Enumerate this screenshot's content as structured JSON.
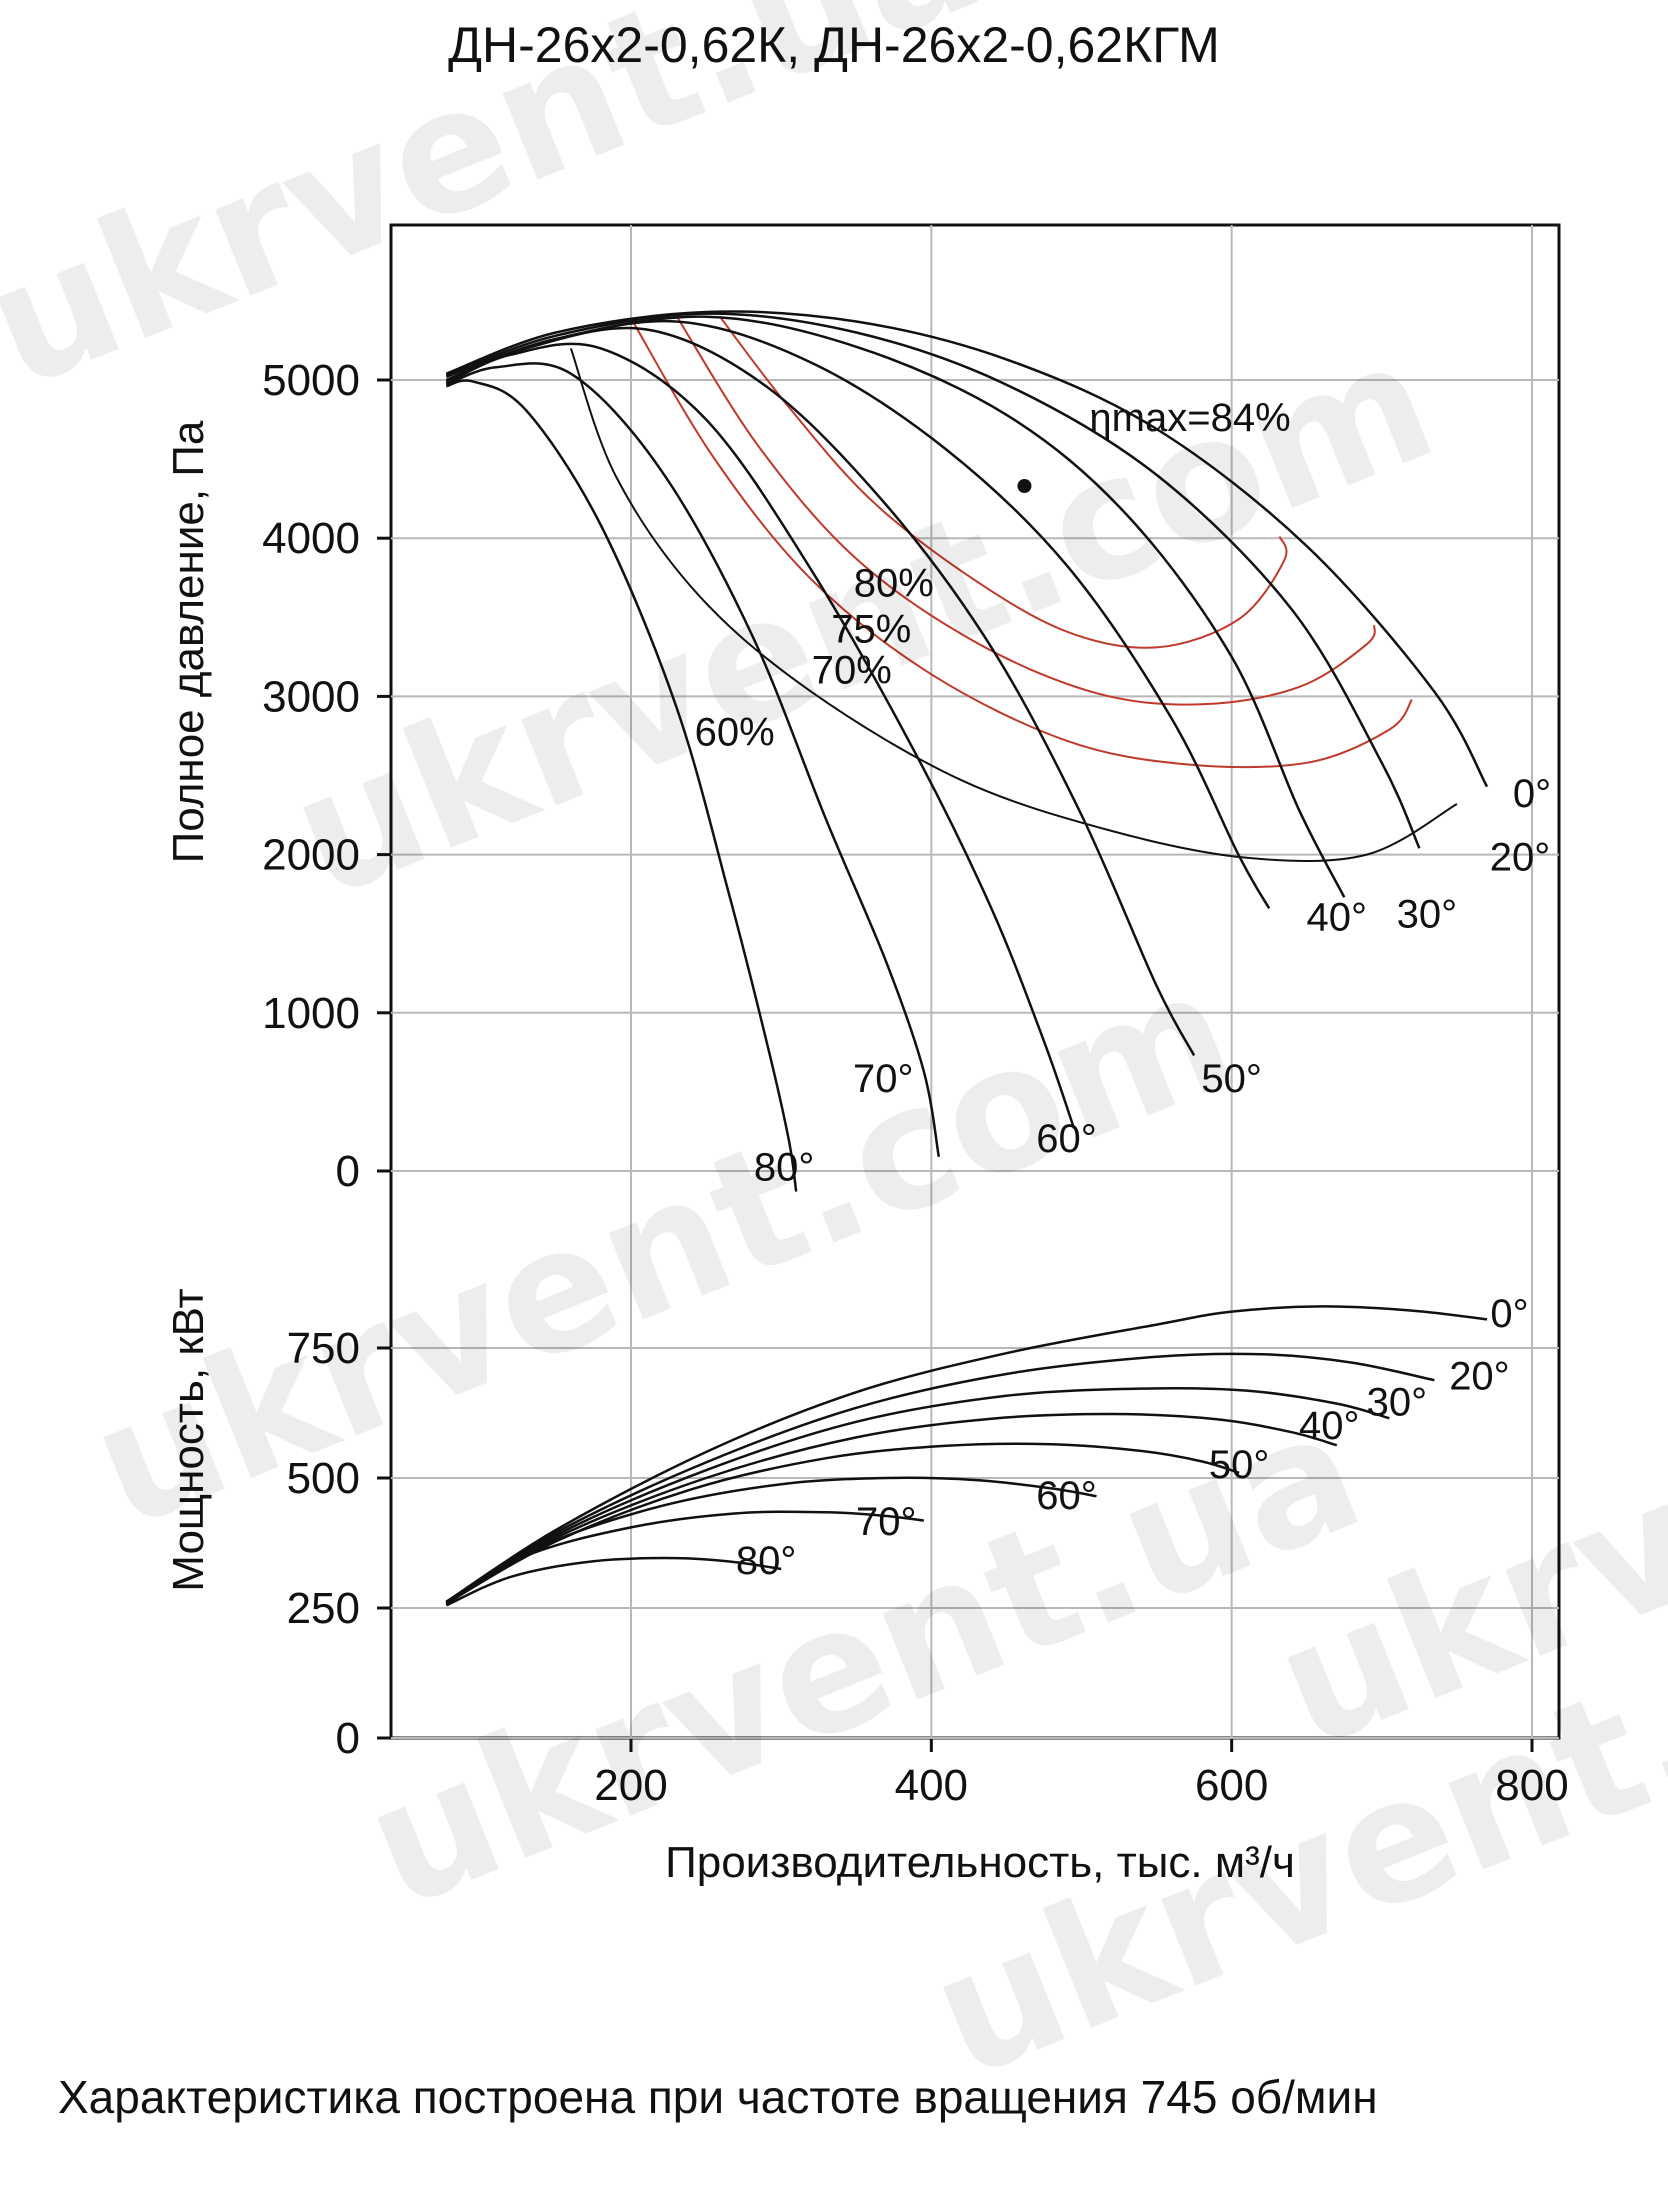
{
  "title": "ДН-26х2-0,62К, ДН-26х2-0,62КГМ",
  "caption": "Характеристика построена при частоте вращения 745 об/мин",
  "watermarks": [
    "ukrvent.ua",
    "ukrvent.com",
    "ukrvent.com",
    "ukrvent.ua",
    "ukrvent.com",
    "ukrvent.ua"
  ],
  "colors": {
    "curve": "#111111",
    "efficiency": "#c0392b",
    "grid": "#b8b8b8",
    "axis": "#111111"
  },
  "chart_data": [
    {
      "type": "line",
      "title": "",
      "xlabel": "",
      "ylabel": "Полное давление, Па",
      "xlim": [
        40,
        820
      ],
      "ylim": [
        -300,
        5900
      ],
      "xticks": [
        200,
        400,
        600,
        800
      ],
      "yticks": [
        0,
        1000,
        2000,
        3000,
        4000,
        5000
      ],
      "grid": true,
      "annotation": {
        "label": "ηmax=84%",
        "x": 462,
        "y": 4330
      },
      "series": [
        {
          "name": "0°",
          "label_at": [
            800,
            2300
          ],
          "x": [
            77,
            150,
            250,
            350,
            450,
            550,
            650,
            735,
            770
          ],
          "y": [
            5040,
            5300,
            5430,
            5370,
            5130,
            4690,
            3950,
            3030,
            2430
          ]
        },
        {
          "name": "20°",
          "label_at": [
            792,
            1900
          ],
          "x": [
            77,
            150,
            250,
            350,
            450,
            550,
            640,
            700,
            725
          ],
          "y": [
            5030,
            5280,
            5420,
            5300,
            4970,
            4400,
            3550,
            2580,
            2040
          ]
        },
        {
          "name": "30°",
          "label_at": [
            730,
            1540
          ],
          "x": [
            77,
            150,
            250,
            350,
            450,
            530,
            600,
            645,
            675
          ],
          "y": [
            5020,
            5260,
            5400,
            5210,
            4780,
            4150,
            3250,
            2280,
            1730
          ]
        },
        {
          "name": "40°",
          "label_at": [
            670,
            1520
          ],
          "x": [
            77,
            140,
            230,
            320,
            410,
            490,
            560,
            605,
            625
          ],
          "y": [
            5000,
            5230,
            5370,
            5110,
            4560,
            3830,
            2860,
            1990,
            1660
          ]
        },
        {
          "name": "50°",
          "label_at": [
            600,
            500
          ],
          "x": [
            77,
            130,
            210,
            290,
            370,
            440,
            500,
            550,
            575
          ],
          "y": [
            4990,
            5200,
            5320,
            4960,
            4210,
            3310,
            2250,
            1170,
            730
          ]
        },
        {
          "name": "60°",
          "label_at": [
            490,
            120
          ],
          "x": [
            77,
            120,
            180,
            250,
            320,
            390,
            440,
            475,
            495
          ],
          "y": [
            4980,
            5160,
            5200,
            4750,
            3800,
            2630,
            1660,
            820,
            270
          ]
        },
        {
          "name": "70°",
          "label_at": [
            368,
            500
          ],
          "x": [
            77,
            110,
            160,
            220,
            280,
            330,
            370,
            395,
            405
          ],
          "y": [
            4970,
            5080,
            5040,
            4430,
            3400,
            2220,
            1320,
            630,
            90
          ]
        },
        {
          "name": "80°",
          "label_at": [
            302,
            -60
          ],
          "x": [
            77,
            95,
            130,
            180,
            230,
            265,
            290,
            305,
            310
          ],
          "y": [
            4960,
            4990,
            4810,
            4080,
            2940,
            1760,
            830,
            200,
            -130
          ]
        }
      ],
      "efficiency_contours": [
        {
          "name": "80%",
          "color": "#c0392b",
          "label_at": [
            375,
            3630
          ],
          "x": [
            260,
            305,
            360,
            425,
            490,
            550,
            605,
            635,
            632
          ],
          "y": [
            5390,
            4830,
            4240,
            3760,
            3410,
            3310,
            3490,
            3860,
            4010
          ]
        },
        {
          "name": "75%",
          "color": "#c0392b",
          "label_at": [
            360,
            3340
          ],
          "x": [
            230,
            285,
            350,
            430,
            510,
            580,
            645,
            690,
            695
          ],
          "y": [
            5410,
            4580,
            3870,
            3340,
            3020,
            2950,
            3060,
            3330,
            3450
          ]
        },
        {
          "name": "70%",
          "color": "#c0392b",
          "label_at": [
            347,
            3080
          ],
          "x": [
            200,
            255,
            320,
            400,
            490,
            570,
            650,
            705,
            720
          ],
          "y": [
            5390,
            4510,
            3740,
            3140,
            2720,
            2570,
            2580,
            2790,
            2980
          ]
        },
        {
          "name": "60%",
          "color": "#111111",
          "label_at": [
            269,
            2690
          ],
          "x": [
            160,
            190,
            245,
            320,
            420,
            520,
            610,
            690,
            750
          ],
          "y": [
            5200,
            4390,
            3640,
            3030,
            2470,
            2150,
            1980,
            2000,
            2320
          ]
        }
      ]
    },
    {
      "type": "line",
      "title": "",
      "xlabel": "Производительность, тыс. м³/ч",
      "ylabel": "Мощность, кВт",
      "xlim": [
        40,
        820
      ],
      "ylim": [
        0,
        880
      ],
      "xticks": [
        200,
        400,
        600,
        800
      ],
      "yticks": [
        0,
        250,
        500,
        750
      ],
      "grid": true,
      "series": [
        {
          "name": "0°",
          "label_at": [
            785,
            790
          ],
          "x": [
            77,
            150,
            250,
            350,
            450,
            550,
            600,
            660,
            720,
            770
          ],
          "y": [
            262,
            400,
            550,
            665,
            740,
            795,
            820,
            830,
            822,
            805
          ]
        },
        {
          "name": "20°",
          "label_at": [
            765,
            670
          ],
          "x": [
            77,
            150,
            250,
            350,
            450,
            550,
            620,
            680,
            735
          ],
          "y": [
            262,
            395,
            530,
            635,
            700,
            733,
            738,
            722,
            688
          ]
        },
        {
          "name": "30°",
          "label_at": [
            710,
            620
          ],
          "x": [
            77,
            150,
            250,
            350,
            450,
            540,
            610,
            670,
            705
          ],
          "y": [
            261,
            390,
            515,
            608,
            658,
            672,
            668,
            643,
            615
          ]
        },
        {
          "name": "40°",
          "label_at": [
            665,
            575
          ],
          "x": [
            77,
            150,
            250,
            350,
            440,
            520,
            590,
            640,
            670
          ],
          "y": [
            260,
            385,
            500,
            578,
            614,
            623,
            613,
            588,
            563
          ]
        },
        {
          "name": "50°",
          "label_at": [
            605,
            500
          ],
          "x": [
            77,
            150,
            240,
            330,
            410,
            480,
            540,
            580,
            605
          ],
          "y": [
            259,
            378,
            478,
            538,
            562,
            565,
            552,
            532,
            510
          ]
        },
        {
          "name": "60°",
          "label_at": [
            490,
            440
          ],
          "x": [
            77,
            140,
            220,
            300,
            370,
            430,
            480,
            510
          ],
          "y": [
            258,
            368,
            446,
            488,
            500,
            496,
            480,
            465
          ]
        },
        {
          "name": "70°",
          "label_at": [
            370,
            390
          ],
          "x": [
            77,
            130,
            200,
            270,
            330,
            370,
            395
          ],
          "y": [
            257,
            350,
            405,
            432,
            434,
            427,
            418
          ]
        },
        {
          "name": "80°",
          "label_at": [
            290,
            315
          ],
          "x": [
            77,
            120,
            175,
            230,
            270,
            300
          ],
          "y": [
            255,
            310,
            340,
            346,
            338,
            325
          ]
        }
      ]
    }
  ]
}
